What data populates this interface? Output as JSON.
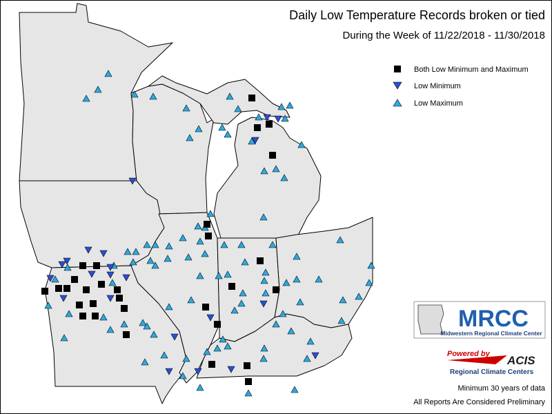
{
  "header": {
    "title": "Daily Low Temperature Records broken or tied",
    "subtitle": "During the Week of 11/22/2018 - 11/30/2018"
  },
  "legend": [
    "Both Low Minimum and Maximum",
    "Low Minimum",
    "Low Maximum"
  ],
  "logos": {
    "mrcc": "MRCC",
    "mrcc_name": "Midwestern Regional Climate Center",
    "powered_by": "Powered by",
    "acis": "ACIS",
    "acis_name": "Regional Climate Centers"
  },
  "notes": [
    "Minimum 30 years of data",
    "All Reports Are Considered Preliminary"
  ]
}
